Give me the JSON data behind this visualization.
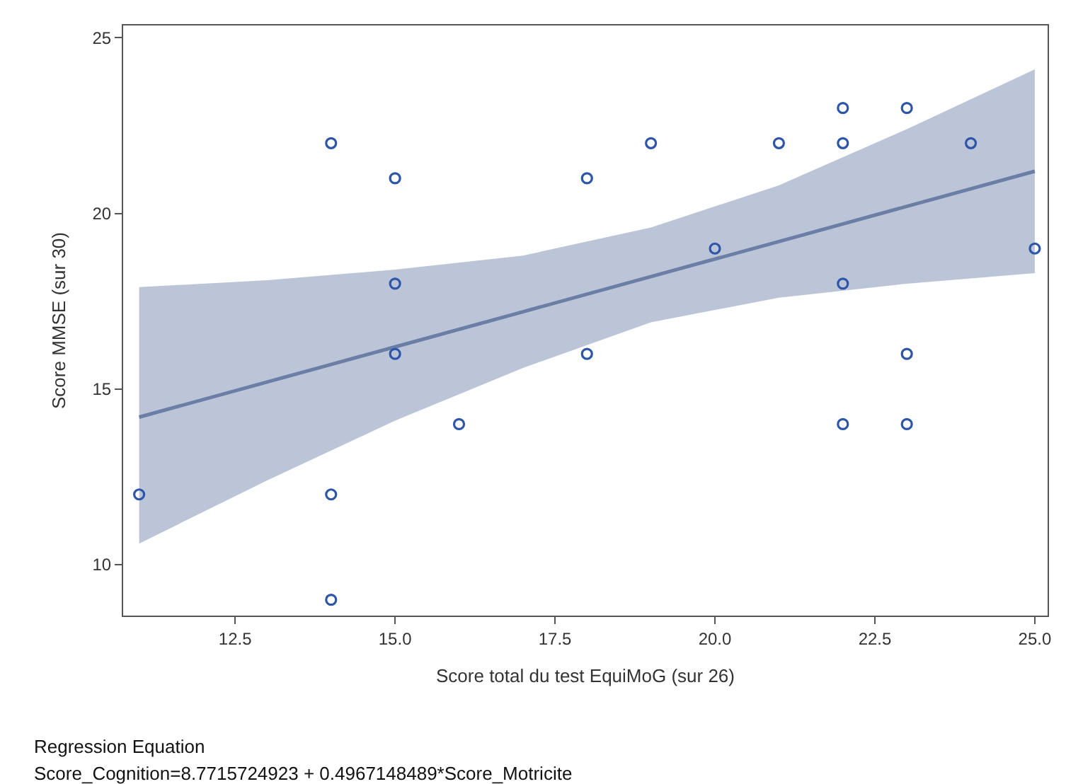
{
  "chart_data": {
    "type": "scatter",
    "xlabel": "Score total du test EquiMoG (sur 26)",
    "ylabel": "Score MMSE (sur 30)",
    "annotations": [
      "Regression Equation",
      "Score_Cognition=8.7715724923 + 0.4967148489*Score_Motricite"
    ],
    "xlim": [
      10.75,
      25.2
    ],
    "ylim": [
      8.55,
      25.35
    ],
    "xticks": [
      12.5,
      {
        "value": 15,
        "label": "15.0"
      },
      17.5,
      {
        "value": 20,
        "label": "20.0"
      },
      22.5,
      {
        "value": 25,
        "label": "25.0"
      }
    ],
    "yticks": [
      10,
      15,
      20,
      25
    ],
    "series": [
      {
        "type": "line",
        "color": "#6a7ea6",
        "marker": "none",
        "line_style": "solid",
        "x": [
          11,
          13,
          15,
          17,
          19,
          21,
          23,
          25
        ],
        "values": [
          14.2,
          15.2,
          16.2,
          17.2,
          18.2,
          19.2,
          20.2,
          21.2
        ],
        "lower": [
          10.6,
          12.4,
          14.1,
          15.6,
          16.9,
          17.6,
          18.0,
          18.3
        ],
        "upper": [
          17.9,
          18.1,
          18.4,
          18.8,
          19.6,
          20.8,
          22.4,
          24.1
        ]
      },
      {
        "color": "#2e56a8",
        "marker": "circle",
        "x": [
          11,
          14,
          14,
          14,
          15,
          15,
          15,
          16,
          18,
          18,
          19,
          20,
          21,
          22,
          22,
          22,
          22,
          23,
          23,
          23,
          24,
          25
        ],
        "values": [
          12,
          22,
          12,
          9,
          21,
          18,
          16,
          14,
          21,
          16,
          22,
          19,
          22,
          23,
          22,
          18,
          14,
          23,
          16,
          14,
          22,
          19
        ]
      }
    ]
  }
}
